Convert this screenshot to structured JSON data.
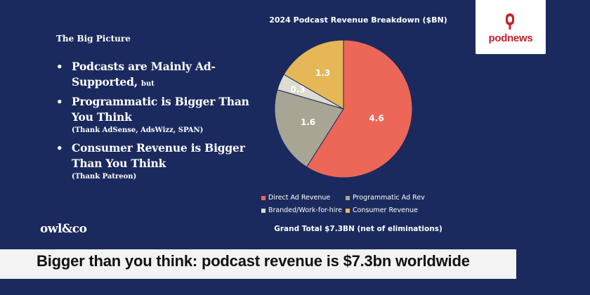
{
  "slide": {
    "heading": "The Big Picture",
    "bullets": [
      {
        "main": "Podcasts are Mainly Ad-Supported,",
        "small": "but",
        "sub": ""
      },
      {
        "main": "Programmatic is Bigger Than You Think",
        "small": "",
        "sub": "(Thank AdSense, AdsWizz, SPAN)"
      },
      {
        "main": "Consumer Revenue is Bigger Than You Think",
        "small": "",
        "sub": "(Thank Patreon)"
      }
    ],
    "logo": "owl&co",
    "grand_total": "Grand Total $7.3BN (net of eliminations)"
  },
  "badge": {
    "text": "podnews"
  },
  "headline": "Bigger than you think: podcast revenue is $7.3bn worldwide",
  "chart_data": {
    "type": "pie",
    "title": "2024 Podcast Revenue Breakdown ($BN)",
    "categories": [
      "Direct Ad Revenue",
      "Programmatic Ad Rev",
      "Branded/Work-for-hire",
      "Consumer Revenue"
    ],
    "values": [
      4.6,
      1.6,
      0.3,
      1.3
    ],
    "labels": [
      "4.6",
      "1.6",
      "0.3",
      "1.3"
    ],
    "colors": [
      "#ec6757",
      "#a8a595",
      "#dcdcd0",
      "#e6b757"
    ],
    "legend_position": "bottom"
  }
}
